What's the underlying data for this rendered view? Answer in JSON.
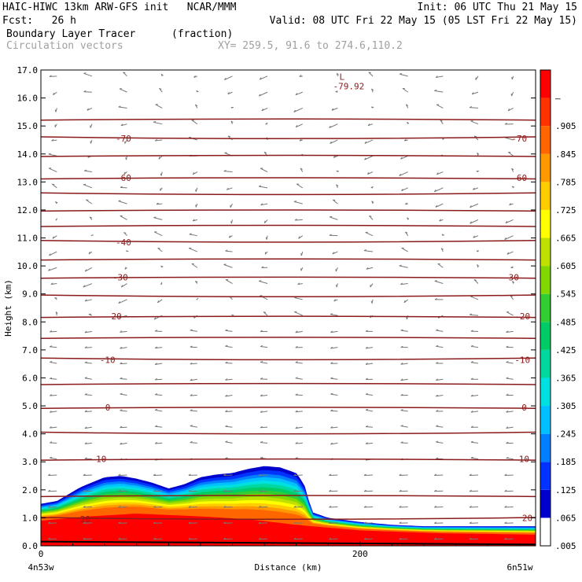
{
  "header": {
    "title_left": "HAIC-HIWC 13km ARW-GFS init   NCAR/MMM",
    "fcst": "Fcst:   26 h",
    "init": "Init: 06 UTC Thu 21 May 15",
    "valid": "Valid: 08 UTC Fri 22 May 15 (05 LST Fri 22 May 15)",
    "field_name": "Boundary Layer Tracer",
    "field_units": "(fraction)",
    "vectors_label": "Circulation vectors",
    "xy_label": "XY= 259.5, 91.6 to 274.6,110.2"
  },
  "chart_data": {
    "type": "heatmap",
    "xlabel": "Distance (km)",
    "ylabel": "Height (km)",
    "xlim": [
      0,
      310
    ],
    "ylim": [
      0,
      17
    ],
    "x_ticks": [
      0,
      200
    ],
    "y_ticks": [
      "0.0",
      "1.0",
      "2.0",
      "3.0",
      "4.0",
      "5.0",
      "6.0",
      "7.0",
      "8.0",
      "9.0",
      "10.0",
      "11.0",
      "12.0",
      "13.0",
      "14.0",
      "15.0",
      "16.0",
      "17.0"
    ],
    "x_endpoint_labels": [
      "4n53w",
      "6n51w"
    ],
    "colorbar": {
      "labels": [
        ".005",
        ".065",
        ".125",
        ".185",
        ".245",
        ".305",
        ".365",
        ".425",
        ".485",
        ".545",
        ".605",
        ".665",
        ".725",
        ".785",
        ".845",
        ".905",
        "–"
      ],
      "colors": [
        "#ffffff",
        "#0000cd",
        "#0033ff",
        "#0080ff",
        "#00c0ff",
        "#00e0e0",
        "#00d8a0",
        "#00cc66",
        "#33cc33",
        "#80d800",
        "#c0e000",
        "#ffff00",
        "#ffcc00",
        "#ff9900",
        "#ff6600",
        "#ff3300",
        "#ff0000"
      ]
    },
    "tracer_top_profile": {
      "x": [
        0,
        10,
        25,
        40,
        50,
        60,
        70,
        80,
        90,
        100,
        110,
        120,
        130,
        140,
        150,
        160,
        165,
        170,
        180,
        200,
        220,
        240,
        260,
        280,
        300,
        310
      ],
      "height_km": [
        1.5,
        1.6,
        2.1,
        2.45,
        2.5,
        2.4,
        2.25,
        2.05,
        2.2,
        2.45,
        2.55,
        2.6,
        2.75,
        2.85,
        2.8,
        2.6,
        2.2,
        1.2,
        1.0,
        0.85,
        0.75,
        0.7,
        0.7,
        0.7,
        0.7,
        0.7
      ]
    },
    "red_layer_top_km": {
      "x": [
        0,
        30,
        60,
        100,
        130,
        160,
        200,
        250,
        310
      ],
      "height_km": [
        0.9,
        1.05,
        1.15,
        1.05,
        0.95,
        0.75,
        0.55,
        0.45,
        0.4
      ]
    },
    "temperature_contours": {
      "units": "°C",
      "interval": 5,
      "heights_km": [
        0.95,
        1.8,
        3.1,
        4.0,
        4.95,
        5.8,
        6.65,
        7.45,
        8.2,
        8.9,
        9.6,
        10.25,
        10.85,
        11.45,
        12.0,
        12.55,
        13.15,
        13.95,
        14.55,
        15.25
      ],
      "labeled": [
        {
          "label": "20",
          "x": 28,
          "height_km": 0.95
        },
        {
          "label": "20",
          "x": 305,
          "height_km": 1.0
        },
        {
          "label": "10",
          "x": 38,
          "height_km": 3.1
        },
        {
          "label": "10",
          "x": 303,
          "height_km": 3.1
        },
        {
          "label": "0",
          "x": 42,
          "height_km": 4.95
        },
        {
          "label": "0",
          "x": 303,
          "height_km": 4.95
        },
        {
          "label": "-10",
          "x": 42,
          "height_km": 6.65
        },
        {
          "label": "-10",
          "x": 302,
          "height_km": 6.65
        },
        {
          "label": "-20",
          "x": 46,
          "height_km": 8.2
        },
        {
          "label": "-20",
          "x": 302,
          "height_km": 8.2
        },
        {
          "label": "-30",
          "x": 50,
          "height_km": 9.6
        },
        {
          "label": "-30",
          "x": 295,
          "height_km": 9.6
        },
        {
          "label": "-40",
          "x": 52,
          "height_km": 10.85
        },
        {
          "label": "-60",
          "x": 52,
          "height_km": 13.15
        },
        {
          "label": "-60",
          "x": 300,
          "height_km": 13.15
        },
        {
          "label": "-70",
          "x": 52,
          "height_km": 14.55
        },
        {
          "label": "-70",
          "x": 300,
          "height_km": 14.55
        }
      ]
    },
    "low_marker": {
      "letter": "L",
      "value": "-79.92",
      "x": 190,
      "height_km": 16.7
    }
  }
}
